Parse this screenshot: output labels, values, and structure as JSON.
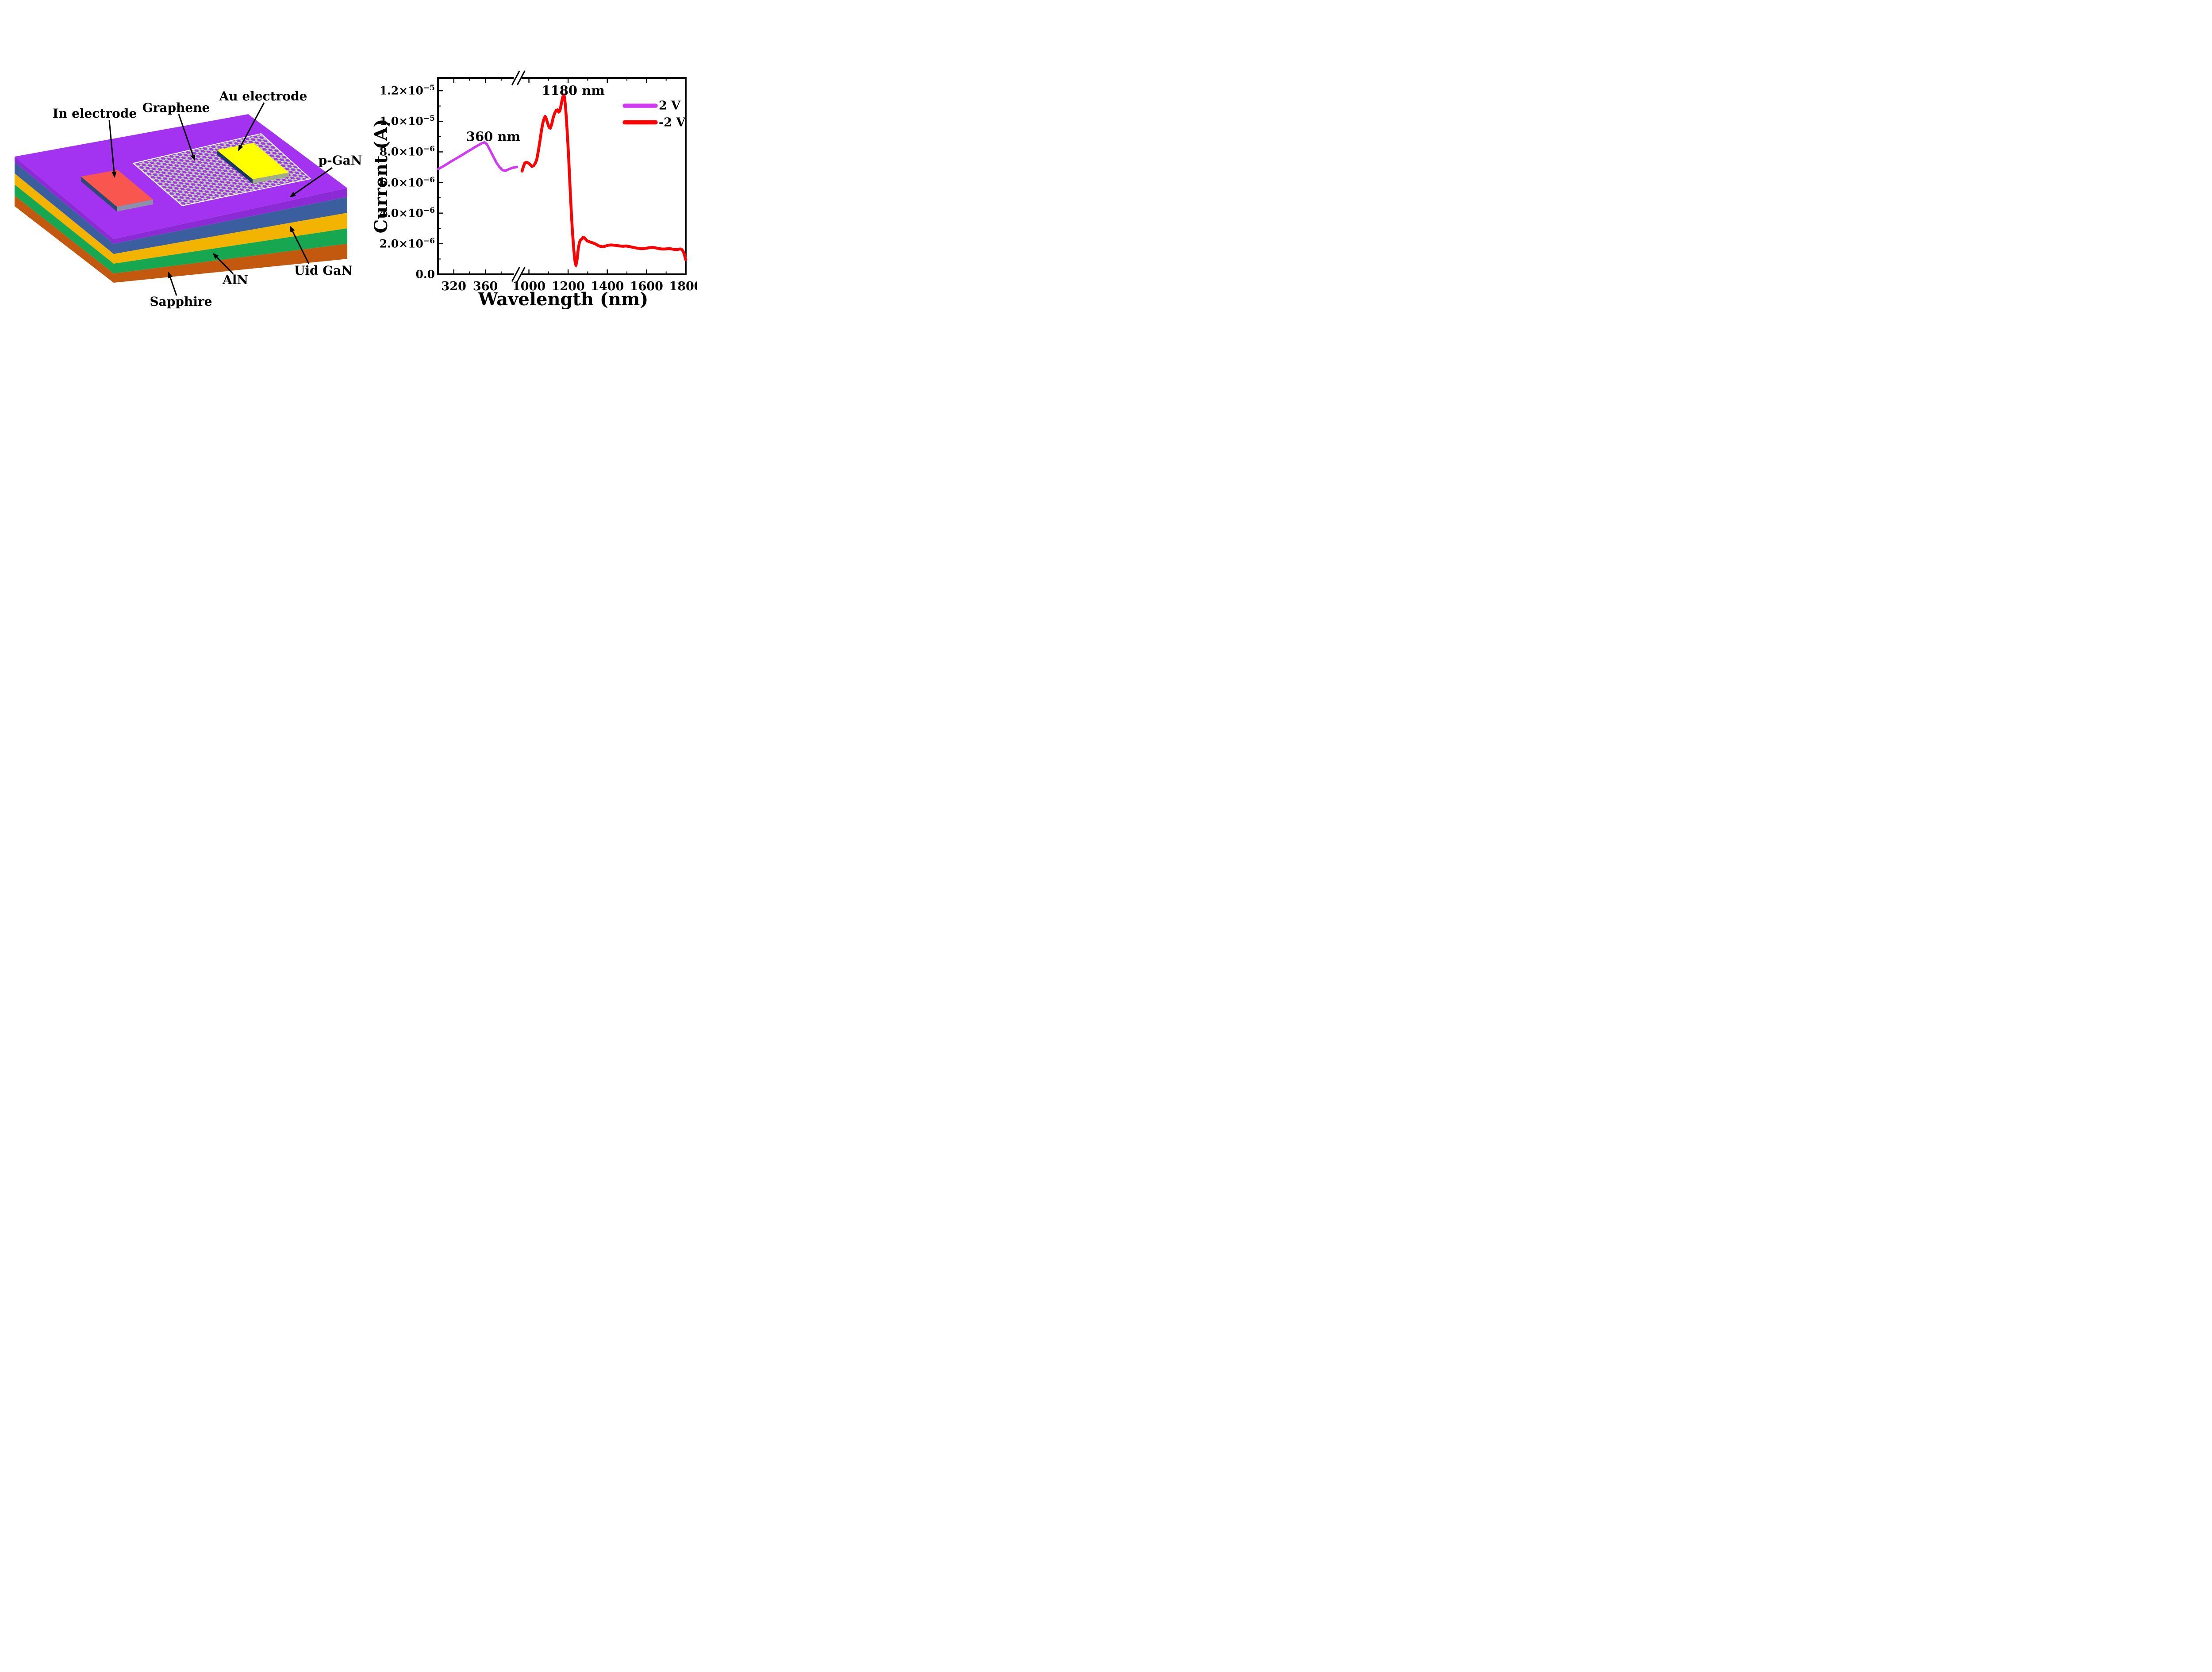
{
  "figure": {
    "background": "#FFFFFF"
  },
  "diagram": {
    "labels": {
      "in_electrode": "In electrode",
      "graphene": "Graphene",
      "au_electrode": "Au electrode",
      "p_gan": "p-GaN",
      "uid_gan": "Uid GaN",
      "aln": "AlN",
      "sapphire": "Sapphire"
    },
    "colors": {
      "p_gan_top": "#A433F1",
      "p_gan_side": "#8C2AD6",
      "layer_blue": "#3B5E9E",
      "uid_gan_gold": "#F2B301",
      "aln_green": "#17A750",
      "sapphire_orange": "#C2590F",
      "in_electrode_top": "#F8564E",
      "in_electrode_side": "#2C4875",
      "in_electrode_front": "#8C90AA",
      "au_electrode_top": "#FFFF00",
      "au_electrode_side": "#1C3864",
      "au_electrode_front": "#9FAE89",
      "graphene_atom": "#CBD1C3",
      "graphene_atom_edge": "#9AA189",
      "graphene_bond": "#B7BEAC",
      "graphene_outline": "#FFFFFF",
      "arrow": "#000000"
    }
  },
  "chart_data": {
    "type": "line",
    "title": "",
    "xlabel": "Wavelength (nm)",
    "ylabel": "Current (A)",
    "grid": false,
    "legend_position": "upper-right",
    "unit_scale": 1e-06,
    "x_axis": {
      "break": true,
      "break_fraction": 0.322,
      "segments": [
        [
          300,
          401
        ],
        [
          943,
          1800
        ]
      ],
      "ticks_major": [
        {
          "value": 320,
          "label": "320"
        },
        {
          "value": 360,
          "label": "360"
        },
        {
          "value": 1000,
          "label": "1000"
        },
        {
          "value": 1200,
          "label": "1200"
        },
        {
          "value": 1400,
          "label": "1400"
        },
        {
          "value": 1600,
          "label": "1600"
        },
        {
          "value": 1800,
          "label": "1800"
        }
      ],
      "ticks_minor": [
        340,
        380,
        1100,
        1300,
        1500,
        1700
      ]
    },
    "y_axis": {
      "range_uA": [
        0,
        12.84
      ],
      "ticks_major": [
        {
          "value": 0,
          "label": "0.0"
        },
        {
          "value": 2,
          "label": "2.0×10^−6"
        },
        {
          "value": 4,
          "label": "4.0×10^−6"
        },
        {
          "value": 6,
          "label": "6.0×10^−6"
        },
        {
          "value": 8,
          "label": "8.0×10^−6"
        },
        {
          "value": 10,
          "label": "1.0×10^−5"
        },
        {
          "value": 12,
          "label": "1.2×10^−5"
        }
      ],
      "ticks_minor": [
        1,
        3,
        5,
        7,
        9,
        11
      ]
    },
    "annotations": [
      {
        "text": "360 nm",
        "x_nm": 370,
        "y_uA": 9.0
      },
      {
        "text": "1180 nm",
        "x_nm": 1226,
        "y_uA": 12.0
      }
    ],
    "legend": [
      {
        "label": "2 V",
        "color": "#D139F2"
      },
      {
        "label": "-2 V",
        "color": "#FF0000"
      }
    ],
    "series": [
      {
        "name": "2 V",
        "color": "#D139F2",
        "width": 5.5,
        "points_nm_uA": [
          [
            300,
            6.87
          ],
          [
            308,
            7.1
          ],
          [
            316,
            7.36
          ],
          [
            324,
            7.6
          ],
          [
            332,
            7.85
          ],
          [
            340,
            8.1
          ],
          [
            348,
            8.35
          ],
          [
            355,
            8.55
          ],
          [
            359,
            8.63
          ],
          [
            362,
            8.5
          ],
          [
            366,
            8.1
          ],
          [
            370,
            7.7
          ],
          [
            374,
            7.3
          ],
          [
            378,
            7.0
          ],
          [
            382,
            6.8
          ],
          [
            386,
            6.78
          ],
          [
            390,
            6.88
          ],
          [
            395,
            6.97
          ],
          [
            400,
            7.02
          ]
        ]
      },
      {
        "name": "-2 V",
        "color": "#FF0000",
        "width": 6.5,
        "points_nm_uA": [
          [
            965,
            6.75
          ],
          [
            972,
            7.05
          ],
          [
            979,
            7.28
          ],
          [
            986,
            7.32
          ],
          [
            993,
            7.3
          ],
          [
            1000,
            7.25
          ],
          [
            1008,
            7.15
          ],
          [
            1016,
            7.05
          ],
          [
            1024,
            7.1
          ],
          [
            1032,
            7.25
          ],
          [
            1040,
            7.5
          ],
          [
            1048,
            8.05
          ],
          [
            1056,
            8.7
          ],
          [
            1064,
            9.4
          ],
          [
            1072,
            9.95
          ],
          [
            1078,
            10.2
          ],
          [
            1083,
            10.32
          ],
          [
            1089,
            10.15
          ],
          [
            1096,
            9.85
          ],
          [
            1103,
            9.6
          ],
          [
            1109,
            9.55
          ],
          [
            1116,
            9.8
          ],
          [
            1124,
            10.25
          ],
          [
            1132,
            10.55
          ],
          [
            1139,
            10.72
          ],
          [
            1146,
            10.75
          ],
          [
            1152,
            10.6
          ],
          [
            1158,
            10.7
          ],
          [
            1164,
            11.05
          ],
          [
            1170,
            11.45
          ],
          [
            1175,
            11.68
          ],
          [
            1179,
            11.73
          ],
          [
            1183,
            11.45
          ],
          [
            1187,
            10.9
          ],
          [
            1191,
            10.2
          ],
          [
            1196,
            9.2
          ],
          [
            1202,
            7.8
          ],
          [
            1208,
            6.2
          ],
          [
            1215,
            4.4
          ],
          [
            1222,
            2.8
          ],
          [
            1229,
            1.6
          ],
          [
            1235,
            0.85
          ],
          [
            1240,
            0.58
          ],
          [
            1246,
            1.0
          ],
          [
            1252,
            1.7
          ],
          [
            1258,
            2.1
          ],
          [
            1264,
            2.25
          ],
          [
            1271,
            2.32
          ],
          [
            1278,
            2.42
          ],
          [
            1284,
            2.38
          ],
          [
            1290,
            2.28
          ],
          [
            1297,
            2.18
          ],
          [
            1305,
            2.15
          ],
          [
            1315,
            2.1
          ],
          [
            1327,
            2.05
          ],
          [
            1340,
            1.98
          ],
          [
            1353,
            1.88
          ],
          [
            1366,
            1.82
          ],
          [
            1379,
            1.8
          ],
          [
            1392,
            1.85
          ],
          [
            1405,
            1.9
          ],
          [
            1420,
            1.92
          ],
          [
            1435,
            1.9
          ],
          [
            1450,
            1.88
          ],
          [
            1465,
            1.85
          ],
          [
            1480,
            1.83
          ],
          [
            1495,
            1.85
          ],
          [
            1510,
            1.82
          ],
          [
            1525,
            1.78
          ],
          [
            1540,
            1.74
          ],
          [
            1555,
            1.7
          ],
          [
            1570,
            1.68
          ],
          [
            1585,
            1.68
          ],
          [
            1600,
            1.71
          ],
          [
            1615,
            1.74
          ],
          [
            1630,
            1.76
          ],
          [
            1645,
            1.73
          ],
          [
            1660,
            1.69
          ],
          [
            1675,
            1.66
          ],
          [
            1690,
            1.65
          ],
          [
            1705,
            1.67
          ],
          [
            1720,
            1.68
          ],
          [
            1735,
            1.64
          ],
          [
            1750,
            1.61
          ],
          [
            1762,
            1.63
          ],
          [
            1772,
            1.66
          ],
          [
            1780,
            1.62
          ],
          [
            1787,
            1.5
          ],
          [
            1793,
            1.3
          ],
          [
            1798,
            1.05
          ],
          [
            1800,
            0.95
          ]
        ]
      }
    ]
  }
}
